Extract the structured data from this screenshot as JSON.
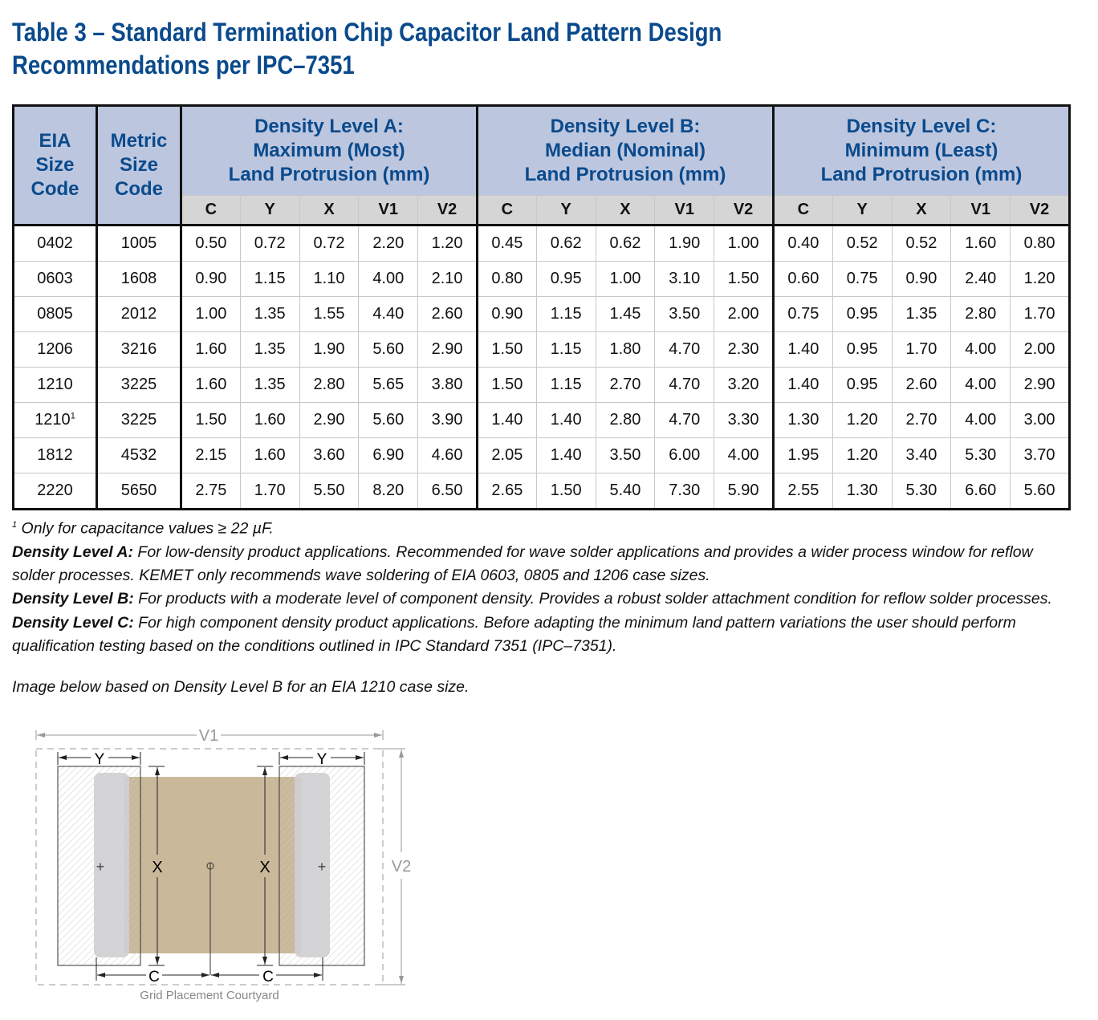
{
  "title_line1": "Table 3 – Standard Termination Chip Capacitor Land Pattern Design",
  "title_line2": "Recommendations per IPC–7351",
  "table": {
    "eia_header": [
      "EIA",
      "Size",
      "Code"
    ],
    "metric_header": [
      "Metric",
      "Size",
      "Code"
    ],
    "groups": [
      {
        "lines": [
          "Density Level A:",
          "Maximum (Most)",
          "Land Protrusion (mm)"
        ]
      },
      {
        "lines": [
          "Density Level B:",
          "Median (Nominal)",
          "Land Protrusion (mm)"
        ]
      },
      {
        "lines": [
          "Density Level C:",
          "Minimum (Least)",
          "Land Protrusion (mm)"
        ]
      }
    ],
    "subcols": [
      "C",
      "Y",
      "X",
      "V1",
      "V2"
    ],
    "rows": [
      {
        "eia": "0402",
        "sup": "",
        "metric": "1005",
        "vals": [
          "0.50",
          "0.72",
          "0.72",
          "2.20",
          "1.20",
          "0.45",
          "0.62",
          "0.62",
          "1.90",
          "1.00",
          "0.40",
          "0.52",
          "0.52",
          "1.60",
          "0.80"
        ]
      },
      {
        "eia": "0603",
        "sup": "",
        "metric": "1608",
        "vals": [
          "0.90",
          "1.15",
          "1.10",
          "4.00",
          "2.10",
          "0.80",
          "0.95",
          "1.00",
          "3.10",
          "1.50",
          "0.60",
          "0.75",
          "0.90",
          "2.40",
          "1.20"
        ]
      },
      {
        "eia": "0805",
        "sup": "",
        "metric": "2012",
        "vals": [
          "1.00",
          "1.35",
          "1.55",
          "4.40",
          "2.60",
          "0.90",
          "1.15",
          "1.45",
          "3.50",
          "2.00",
          "0.75",
          "0.95",
          "1.35",
          "2.80",
          "1.70"
        ]
      },
      {
        "eia": "1206",
        "sup": "",
        "metric": "3216",
        "vals": [
          "1.60",
          "1.35",
          "1.90",
          "5.60",
          "2.90",
          "1.50",
          "1.15",
          "1.80",
          "4.70",
          "2.30",
          "1.40",
          "0.95",
          "1.70",
          "4.00",
          "2.00"
        ]
      },
      {
        "eia": "1210",
        "sup": "",
        "metric": "3225",
        "vals": [
          "1.60",
          "1.35",
          "2.80",
          "5.65",
          "3.80",
          "1.50",
          "1.15",
          "2.70",
          "4.70",
          "3.20",
          "1.40",
          "0.95",
          "2.60",
          "4.00",
          "2.90"
        ]
      },
      {
        "eia": "1210",
        "sup": "1",
        "metric": "3225",
        "vals": [
          "1.50",
          "1.60",
          "2.90",
          "5.60",
          "3.90",
          "1.40",
          "1.40",
          "2.80",
          "4.70",
          "3.30",
          "1.30",
          "1.20",
          "2.70",
          "4.00",
          "3.00"
        ]
      },
      {
        "eia": "1812",
        "sup": "",
        "metric": "4532",
        "vals": [
          "2.15",
          "1.60",
          "3.60",
          "6.90",
          "4.60",
          "2.05",
          "1.40",
          "3.50",
          "6.00",
          "4.00",
          "1.95",
          "1.20",
          "3.40",
          "5.30",
          "3.70"
        ]
      },
      {
        "eia": "2220",
        "sup": "",
        "metric": "5650",
        "vals": [
          "2.75",
          "1.70",
          "5.50",
          "8.20",
          "6.50",
          "2.65",
          "1.50",
          "5.40",
          "7.30",
          "5.90",
          "2.55",
          "1.30",
          "5.30",
          "6.60",
          "5.60"
        ]
      }
    ]
  },
  "notes": {
    "footnote_mark": "1",
    "footnote": " Only for capacitance values ≥ 22 µF.",
    "a_label": "Density Level A:",
    "a_text": " For low-density product applications. Recommended for wave solder applications and provides a wider process window for reflow solder processes. KEMET only recommends wave soldering of EIA 0603, 0805 and 1206 case sizes.",
    "b_label": "Density Level B:",
    "b_text": " For products with a moderate level of component density. Provides a robust solder attachment condition for reflow solder processes.",
    "c_label": "Density Level C:",
    "c_text": " For high component density product applications. Before adapting the minimum land pattern variations the user should perform qualification testing based on the conditions outlined in IPC Standard 7351 (IPC–7351)."
  },
  "caption": "Image below based on Density Level B for an EIA 1210 case size.",
  "diagram": {
    "v1": "V1",
    "v2": "V2",
    "y": "Y",
    "x": "X",
    "c": "C",
    "courtyard": "Grid Placement Courtyard",
    "body_color": "#c9b89a"
  }
}
